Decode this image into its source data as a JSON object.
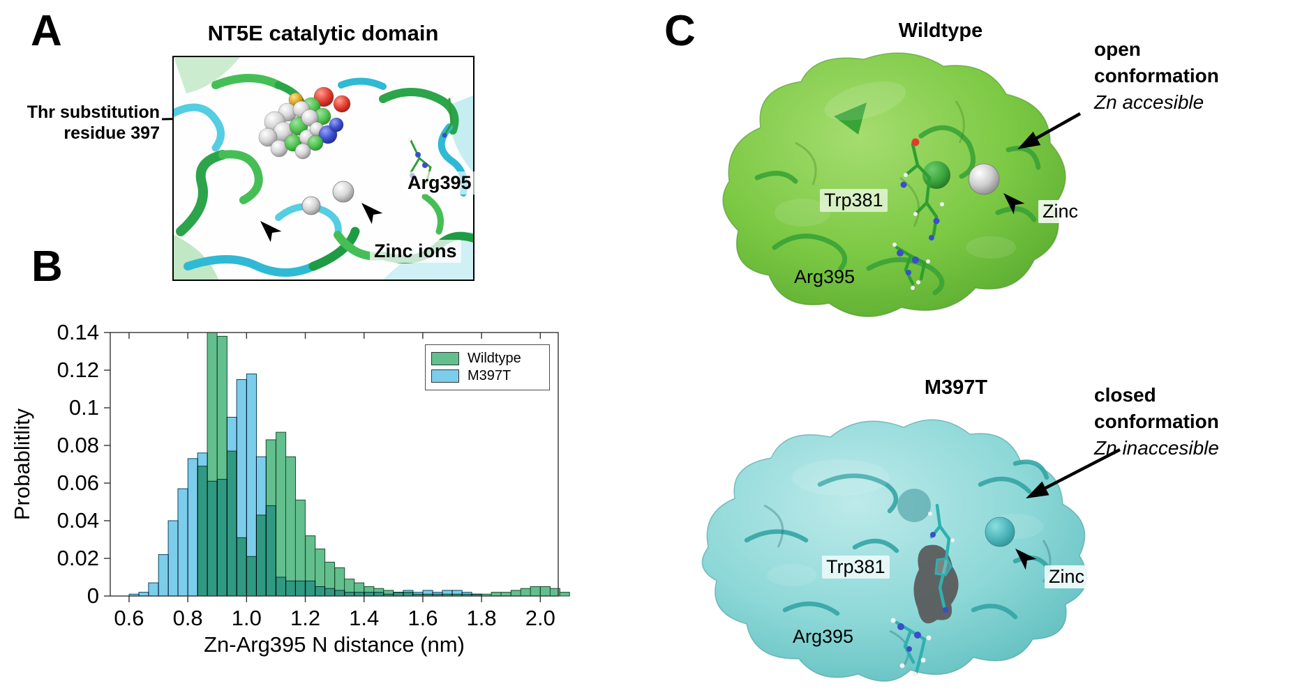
{
  "panelA": {
    "letter": "A",
    "title": "NT5E catalytic domain",
    "annotation_line1": "Thr substitution",
    "annotation_line2": "residue 397",
    "label_arg395": "Arg395",
    "label_zinc_ions": "Zinc ions"
  },
  "panelB": {
    "letter": "B"
  },
  "chart_data": {
    "type": "bar",
    "subtype": "histogram",
    "title": "",
    "xlabel": "Zn-Arg395 N distance (nm)",
    "ylabel": "Probablitlity",
    "xlim": [
      0.536,
      2.061
    ],
    "ylim": [
      0,
      0.14
    ],
    "xticks": [
      0.6,
      0.8,
      1.0,
      1.2,
      1.4,
      1.6,
      1.8,
      2.0
    ],
    "xtick_labels": [
      "0.6",
      "0.8",
      "1.0",
      "1.2",
      "1.4",
      "1.6",
      "1.8",
      "2.0"
    ],
    "yticks": [
      0,
      0.02,
      0.04,
      0.06,
      0.08,
      0.1,
      0.12,
      0.14
    ],
    "ytick_labels": [
      "0",
      "0.02",
      "0.04",
      "0.06",
      "0.08",
      "0.1",
      "0.12",
      "0.14"
    ],
    "bin_width": 0.0333,
    "grid": false,
    "legend": {
      "position": "upper right",
      "entries": [
        "Wildtype",
        "M397T"
      ]
    },
    "categories": [
      0.617,
      0.65,
      0.683,
      0.717,
      0.75,
      0.783,
      0.817,
      0.85,
      0.883,
      0.917,
      0.95,
      0.983,
      1.017,
      1.05,
      1.083,
      1.117,
      1.15,
      1.183,
      1.217,
      1.25,
      1.283,
      1.317,
      1.35,
      1.383,
      1.417,
      1.45,
      1.483,
      1.517,
      1.55,
      1.583,
      1.617,
      1.65,
      1.683,
      1.717,
      1.75,
      1.783,
      1.817,
      1.85,
      1.883,
      1.917,
      1.95,
      1.983,
      2.017,
      2.05,
      2.083
    ],
    "series": [
      {
        "name": "Wildtype",
        "color": "#63bf8d",
        "edge_color": "#1c4a2e",
        "values": [
          0,
          0,
          0,
          0,
          0,
          0,
          0,
          0.069,
          0.14,
          0.138,
          0.077,
          0.031,
          0.021,
          0.043,
          0.083,
          0.087,
          0.074,
          0.051,
          0.032,
          0.025,
          0.018,
          0.015,
          0.009,
          0.007,
          0.005,
          0.004,
          0.003,
          0.002,
          0.002,
          0.001,
          0.001,
          0.001,
          0.001,
          0.001,
          0.001,
          0.001,
          0.001,
          0.002,
          0.002,
          0.003,
          0.004,
          0.005,
          0.005,
          0.004,
          0.002
        ]
      },
      {
        "name": "M397T",
        "color": "#7ccdeb",
        "edge_color": "#0f4663",
        "values": [
          0.001,
          0.002,
          0.007,
          0.022,
          0.04,
          0.057,
          0.073,
          0.076,
          0.061,
          0.062,
          0.095,
          0.115,
          0.118,
          0.074,
          0.048,
          0.01,
          0.008,
          0.008,
          0.008,
          0.005,
          0.004,
          0.003,
          0.002,
          0.002,
          0.002,
          0.002,
          0.001,
          0.002,
          0.003,
          0.002,
          0.003,
          0.002,
          0.003,
          0.003,
          0.002,
          0.001,
          0,
          0,
          0,
          0,
          0,
          0,
          0,
          0,
          0
        ]
      }
    ]
  },
  "panelC": {
    "letter": "C",
    "wildtype": {
      "title": "Wildtype",
      "conf_line1": "open",
      "conf_line2": "conformation",
      "conf_line3": "Zn accesible",
      "label_trp": "Trp381",
      "label_arg": "Arg395",
      "label_zinc": "Zinc"
    },
    "m397t": {
      "title": "M397T",
      "conf_line1": "closed",
      "conf_line2": "conformation",
      "conf_line3": "Zn inaccesible",
      "label_trp": "Trp381",
      "label_arg": "Arg395",
      "label_zinc": "Zinc"
    }
  },
  "colors": {
    "histogram_green": "#63bf8d",
    "histogram_blue": "#7ccdeb",
    "overlap_teal": "#309a82",
    "surface_green": "#74c63e",
    "surface_cyan": "#7fd2d2",
    "zinc_grey": "#b9b9b9",
    "arrow_black": "#000000"
  }
}
